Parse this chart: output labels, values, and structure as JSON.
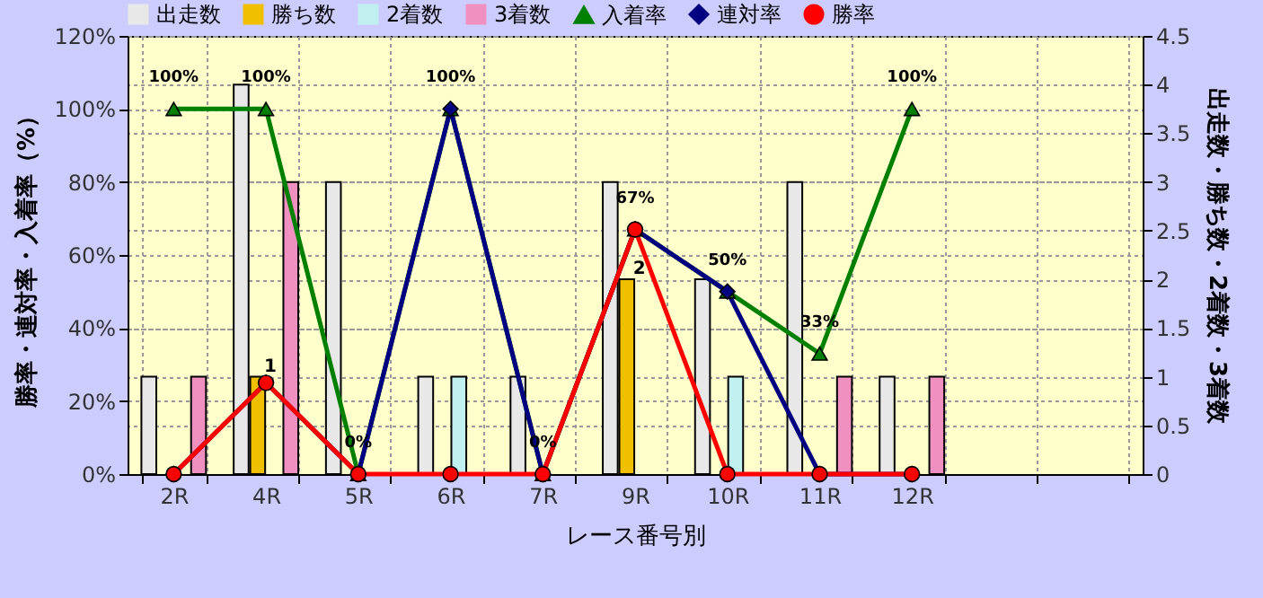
{
  "chart_data": {
    "type": "bar",
    "xlabel": "レース番号別",
    "ylabel": "勝率・連対率・入着率（%）",
    "y2label": "出走数・勝ち数・2着数・3着数",
    "categories": [
      "2R",
      "4R",
      "5R",
      "6R",
      "7R",
      "9R",
      "10R",
      "11R",
      "12R",
      null,
      null
    ],
    "series": [
      {
        "name": "出走数",
        "type": "bar",
        "axis": "y2",
        "color": "#e8e8e8",
        "values": [
          1,
          4,
          3,
          1,
          1,
          3,
          2,
          3,
          1,
          null,
          null
        ]
      },
      {
        "name": "勝ち数",
        "type": "bar",
        "axis": "y2",
        "color": "#f0c000",
        "values": [
          0,
          1,
          0,
          0,
          0,
          2,
          0,
          0,
          0,
          null,
          null
        ],
        "value_labels": [
          null,
          "1",
          null,
          null,
          null,
          "2",
          null,
          null,
          null,
          null,
          null
        ]
      },
      {
        "name": "2着数",
        "type": "bar",
        "axis": "y2",
        "color": "#c0f0f0",
        "values": [
          0,
          0,
          0,
          1,
          0,
          0,
          1,
          0,
          0,
          null,
          null
        ]
      },
      {
        "name": "3着数",
        "type": "bar",
        "axis": "y2",
        "color": "#f090c0",
        "values": [
          1,
          3,
          0,
          0,
          0,
          0,
          0,
          1,
          1,
          null,
          null
        ]
      },
      {
        "name": "入着率",
        "type": "line",
        "axis": "y",
        "marker": "triangle",
        "color": "#008000",
        "values": [
          100,
          100,
          0,
          100,
          0,
          67,
          50,
          33,
          100,
          null,
          null
        ],
        "value_labels": [
          "100%",
          "100%",
          "0%",
          "100%",
          "0%",
          "67%",
          "50%",
          "33%",
          "100%",
          null,
          null
        ]
      },
      {
        "name": "連対率",
        "type": "line",
        "axis": "y",
        "marker": "diamond",
        "color": "#000080",
        "values": [
          0,
          25,
          0,
          100,
          0,
          67,
          50,
          0,
          0,
          null,
          null
        ]
      },
      {
        "name": "勝率",
        "type": "line",
        "axis": "y",
        "marker": "circle",
        "color": "#ff0000",
        "values": [
          0,
          25,
          0,
          0,
          0,
          67,
          0,
          0,
          0,
          null,
          null
        ]
      }
    ],
    "ylim": [
      0,
      120
    ],
    "yticks": [
      {
        "value": 0,
        "label": "0%"
      },
      {
        "value": 20,
        "label": "20%"
      },
      {
        "value": 40,
        "label": "40%"
      },
      {
        "value": 60,
        "label": "60%"
      },
      {
        "value": 80,
        "label": "80%"
      },
      {
        "value": 100,
        "label": "100%"
      },
      {
        "value": 120,
        "label": "120%"
      }
    ],
    "y2lim": [
      0,
      4.5
    ],
    "y2ticks": [
      0,
      0.5,
      1,
      1.5,
      2,
      2.5,
      3,
      3.5,
      4,
      4.5
    ],
    "grid": true,
    "legend": "top"
  }
}
